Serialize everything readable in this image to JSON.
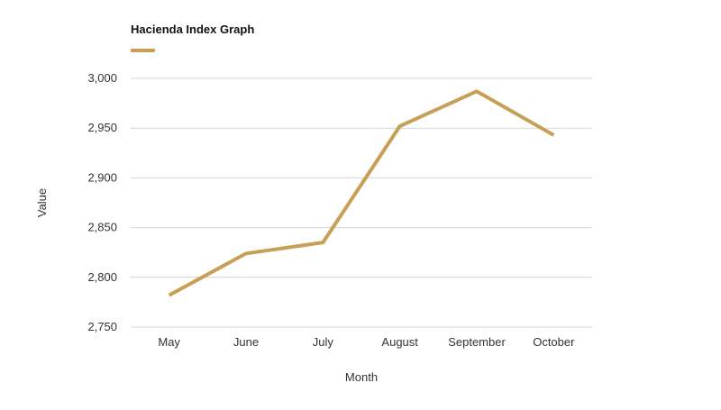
{
  "chart_data": {
    "type": "line",
    "title": "",
    "xlabel": "Month",
    "ylabel": "Value",
    "categories": [
      "May",
      "June",
      "July",
      "August",
      "September",
      "October"
    ],
    "series": [
      {
        "name": "Hacienda Index Graph",
        "values": [
          2782,
          2824,
          2835,
          2952,
          2987,
          2943
        ],
        "color": "#c89f56"
      }
    ],
    "ylim": [
      2750,
      3000
    ],
    "yticks": [
      2750,
      2800,
      2850,
      2900,
      2950,
      3000
    ],
    "ytick_labels": [
      "2,750",
      "2,800",
      "2,850",
      "2,900",
      "2,950",
      "3,000"
    ],
    "grid": true,
    "legend_position": "top-left"
  },
  "colors": {
    "series": "#c89f56",
    "grid": "#d4d4d4",
    "text": "#333333"
  }
}
